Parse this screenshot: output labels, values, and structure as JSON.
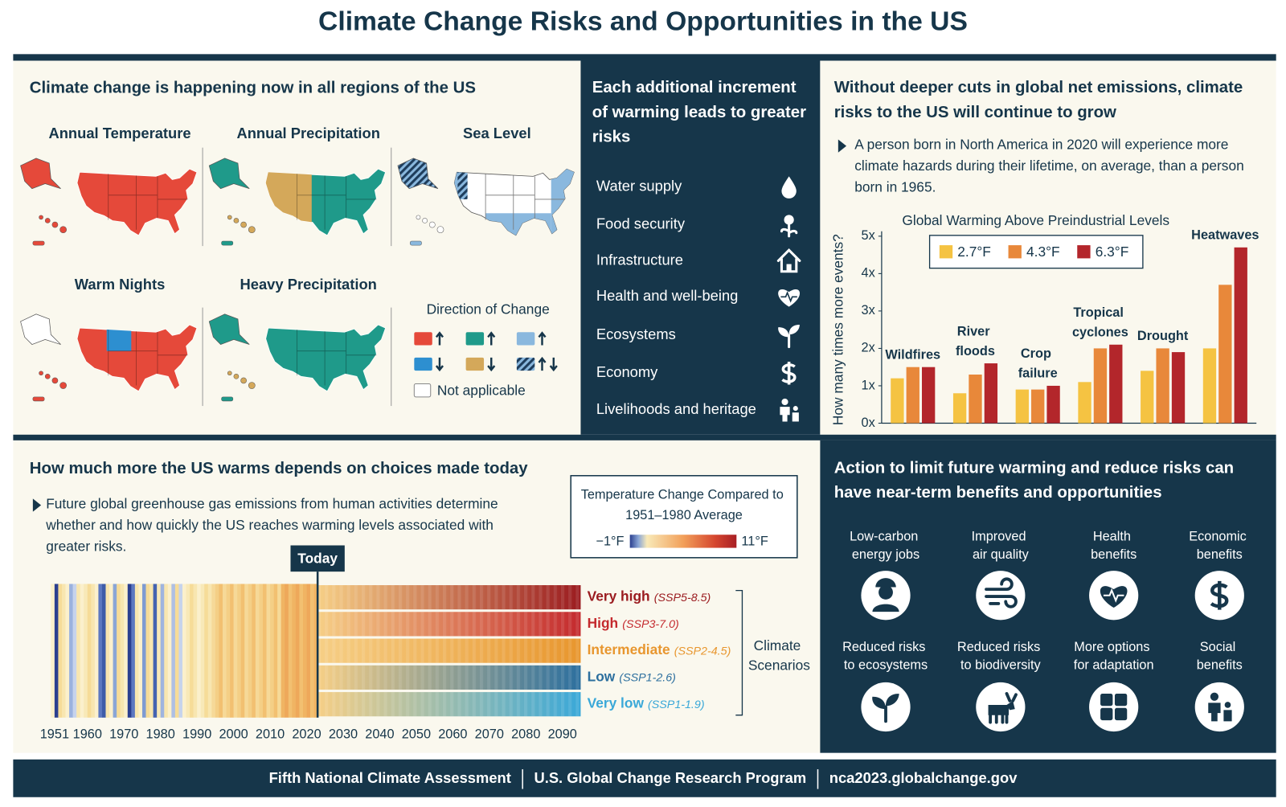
{
  "title": "Climate Change Risks and Opportunities in the US",
  "regions_panel": {
    "heading": "Climate change is happening now in all regions of the US",
    "maps": [
      "Annual Temperature",
      "Annual Precipitation",
      "Sea Level",
      "Warm Nights",
      "Heavy Precipitation"
    ],
    "legend": {
      "title": "Direction of Change",
      "not_applicable": "Not applicable"
    }
  },
  "risks_panel": {
    "heading": "Each additional increment of warming leads to greater risks",
    "items": [
      "Water supply",
      "Food security",
      "Infrastructure",
      "Health and well-being",
      "Ecosystems",
      "Economy",
      "Livelihoods and heritage"
    ]
  },
  "emissions_panel": {
    "heading": "Without deeper cuts in global net emissions, climate risks to the US will continue to grow",
    "bullet": "A person born in North America in 2020 will experience more climate hazards during their lifetime, on average, than a person born in 1965."
  },
  "warming_panel": {
    "heading": "How much more the US warms depends on choices made today",
    "bullet": "Future global greenhouse gas emissions from human activities determine whether and how quickly the US reaches warming levels associated with greater risks."
  },
  "action_panel": {
    "heading": "Action to limit future warming and reduce risks can have near-term benefits and opportunities",
    "benefits": [
      "Low-carbon energy jobs",
      "Improved air quality",
      "Health benefits",
      "Economic benefits",
      "Reduced risks to ecosystems",
      "Reduced risks to biodiversity",
      "More options for adaptation",
      "Social benefits"
    ]
  },
  "chart_data": [
    {
      "type": "bar",
      "title": "Global Warming Above Preindustrial Levels",
      "ylabel": "How many times more events?",
      "categories": [
        "Wildfires",
        "River floods",
        "Crop failure",
        "Tropical cyclones",
        "Drought",
        "Heatwaves"
      ],
      "series": [
        {
          "name": "2.7°F",
          "color": "#f5c342",
          "values": [
            1.2,
            0.8,
            0.9,
            1.1,
            1.4,
            2.0
          ]
        },
        {
          "name": "4.3°F",
          "color": "#e8883a",
          "values": [
            1.5,
            1.3,
            0.9,
            2.0,
            2.0,
            3.7
          ]
        },
        {
          "name": "6.3°F",
          "color": "#b3262b",
          "values": [
            1.5,
            1.6,
            1.0,
            2.1,
            1.9,
            4.7
          ]
        }
      ],
      "ylim": [
        0,
        5
      ],
      "yticks": [
        {
          "value": 0,
          "label": "0x"
        },
        {
          "value": 1,
          "label": "1x"
        },
        {
          "value": 2,
          "label": "2x"
        },
        {
          "value": 3,
          "label": "3x"
        },
        {
          "value": 4,
          "label": "4x"
        },
        {
          "value": 5,
          "label": "5x"
        }
      ],
      "legend": "upper center",
      "grid": false
    },
    {
      "type": "stripes",
      "xlim": [
        1950,
        2095
      ],
      "xticks": [
        1951,
        1960,
        1970,
        1980,
        1990,
        2000,
        2010,
        2020,
        2030,
        2040,
        2050,
        2060,
        2070,
        2080,
        2090
      ],
      "today": {
        "label": "Today",
        "x": 2023
      },
      "series": [
        {
          "name": "Very high",
          "code": "(SSP5-8.5)",
          "color": "#9b1c20"
        },
        {
          "name": "High",
          "code": "(SSP3-7.0)",
          "color": "#c42a2e"
        },
        {
          "name": "Intermediate",
          "code": "(SSP2-4.5)",
          "color": "#e8962e"
        },
        {
          "name": "Low",
          "code": "(SSP1-2.6)",
          "color": "#2c6f9e"
        },
        {
          "name": "Very low",
          "code": "(SSP1-1.9)",
          "color": "#3aa8d8"
        }
      ],
      "group_label": "Climate Scenarios",
      "legend": {
        "title": "Temperature Change Compared to 1951–1980 Average",
        "min_label": "−1°F",
        "max_label": "11°F"
      }
    }
  ],
  "footer": [
    "Fifth National Climate Assessment",
    "U.S. Global Change Research Program",
    "nca2023.globalchange.gov"
  ]
}
